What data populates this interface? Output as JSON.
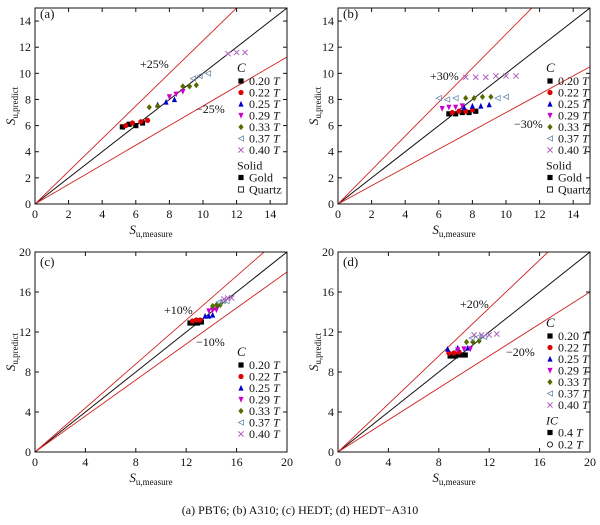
{
  "caption": "(a) PBT6; (b) A310; (c) HEDT; (d) HEDT−A310",
  "chart_data": [
    {
      "type": "scatter",
      "panel": "(a)",
      "xlabel": "S_u,measure",
      "ylabel": "S_u,predict",
      "xlim": [
        0,
        15
      ],
      "ylim": [
        0,
        15
      ],
      "xticks": [
        0,
        2,
        4,
        6,
        8,
        10,
        12,
        14
      ],
      "yticks": [
        0,
        2,
        4,
        6,
        8,
        10,
        12,
        14
      ],
      "bands": [
        {
          "label": "+25%",
          "factor": 1.25
        },
        {
          "label": "−25%",
          "factor": 0.75
        }
      ],
      "legend_title": "C",
      "series": [
        {
          "name": "0.20 T",
          "marker": "square",
          "color": "#000000",
          "x": [
            5.2,
            5.6,
            6.0,
            6.4
          ],
          "y": [
            5.9,
            6.1,
            6.0,
            6.2
          ]
        },
        {
          "name": "0.22 T",
          "marker": "circle",
          "color": "#dd0000",
          "x": [
            5.4,
            5.8,
            6.3,
            6.7
          ],
          "y": [
            6.0,
            6.2,
            6.3,
            6.4
          ]
        },
        {
          "name": "0.25 T",
          "marker": "triangle-up",
          "color": "#0000cc",
          "x": [
            7.3,
            7.8,
            8.3
          ],
          "y": [
            7.6,
            7.8,
            8.0
          ]
        },
        {
          "name": "0.29 T",
          "marker": "triangle-down",
          "color": "#cc00cc",
          "x": [
            8.0,
            8.4,
            8.8
          ],
          "y": [
            8.2,
            8.4,
            8.6
          ]
        },
        {
          "name": "0.33 T",
          "marker": "diamond",
          "color": "#556b00",
          "x": [
            6.8,
            7.3,
            8.8,
            9.2,
            9.6
          ],
          "y": [
            7.4,
            7.5,
            9.0,
            9.0,
            9.1
          ]
        },
        {
          "name": "0.37 T",
          "marker": "left-triangle",
          "color": "#6b8eb0",
          "x": [
            9.4,
            9.8,
            10.3
          ],
          "y": [
            9.6,
            9.8,
            10.0
          ]
        },
        {
          "name": "0.40 T",
          "marker": "x",
          "color": "#b060c0",
          "x": [
            11.5,
            12.0,
            12.5
          ],
          "y": [
            11.5,
            11.6,
            11.6
          ]
        }
      ],
      "solid_title": "Solid",
      "solid": [
        {
          "name": "Gold",
          "marker": "filled",
          "color": "#000000"
        },
        {
          "name": "Quartz",
          "marker": "open-square",
          "color": "#000000"
        }
      ]
    },
    {
      "type": "scatter",
      "panel": "(b)",
      "xlabel": "S_u,measure",
      "ylabel": "S_u,predict",
      "xlim": [
        0,
        15
      ],
      "ylim": [
        0,
        15
      ],
      "xticks": [
        0,
        2,
        4,
        6,
        8,
        10,
        12,
        14
      ],
      "yticks": [
        0,
        2,
        4,
        6,
        8,
        10,
        12,
        14
      ],
      "bands": [
        {
          "label": "+30%",
          "factor": 1.3
        },
        {
          "label": "−30%",
          "factor": 0.7
        }
      ],
      "legend_title": "C",
      "series": [
        {
          "name": "0.20 T",
          "marker": "square",
          "color": "#000000",
          "x": [
            6.6,
            7.0,
            7.4,
            7.8,
            8.2
          ],
          "y": [
            6.9,
            6.9,
            7.0,
            7.0,
            7.1
          ]
        },
        {
          "name": "0.22 T",
          "marker": "circle",
          "color": "#dd0000",
          "x": [
            6.8,
            7.2,
            7.6,
            8.0
          ],
          "y": [
            7.0,
            7.1,
            7.1,
            7.2
          ]
        },
        {
          "name": "0.25 T",
          "marker": "triangle-up",
          "color": "#0000cc",
          "x": [
            7.5,
            8.0,
            8.5,
            9.0
          ],
          "y": [
            7.4,
            7.5,
            7.5,
            7.6
          ]
        },
        {
          "name": "0.29 T",
          "marker": "triangle-down",
          "color": "#cc00cc",
          "x": [
            6.2,
            6.6,
            7.0,
            7.4
          ],
          "y": [
            7.3,
            7.4,
            7.4,
            7.5
          ]
        },
        {
          "name": "0.33 T",
          "marker": "diamond",
          "color": "#556b00",
          "x": [
            7.6,
            8.1,
            8.6,
            9.1
          ],
          "y": [
            8.1,
            8.1,
            8.2,
            8.2
          ]
        },
        {
          "name": "0.37 T",
          "marker": "left-triangle",
          "color": "#6b8eb0",
          "x": [
            6.0,
            6.5,
            7.0,
            9.5,
            10.0
          ],
          "y": [
            8.1,
            8.0,
            8.1,
            8.1,
            8.2
          ]
        },
        {
          "name": "0.40 T",
          "marker": "x",
          "color": "#b060c0",
          "x": [
            7.6,
            8.2,
            8.8,
            9.4,
            10.0,
            10.6
          ],
          "y": [
            9.7,
            9.7,
            9.7,
            9.8,
            9.8,
            9.8
          ]
        }
      ],
      "solid_title": "Solid",
      "solid": [
        {
          "name": "Gold",
          "marker": "filled",
          "color": "#000000"
        },
        {
          "name": "Quartz",
          "marker": "open-square",
          "color": "#000000"
        }
      ]
    },
    {
      "type": "scatter",
      "panel": "(c)",
      "xlabel": "S_u,measure",
      "ylabel": "S_u,predict",
      "xlim": [
        0,
        20
      ],
      "ylim": [
        0,
        20
      ],
      "xticks": [
        0,
        4,
        8,
        12,
        16,
        20
      ],
      "yticks": [
        0,
        4,
        8,
        12,
        16,
        20
      ],
      "bands": [
        {
          "label": "+10%",
          "factor": 1.1
        },
        {
          "label": "−10%",
          "factor": 0.9
        }
      ],
      "legend_title": "C",
      "series": [
        {
          "name": "0.20 T",
          "marker": "square",
          "color": "#000000",
          "x": [
            12.3,
            12.6,
            12.9,
            13.2
          ],
          "y": [
            12.9,
            12.9,
            12.9,
            13.0
          ]
        },
        {
          "name": "0.22 T",
          "marker": "circle",
          "color": "#dd0000",
          "x": [
            12.5,
            12.8,
            13.1
          ],
          "y": [
            13.1,
            13.2,
            13.2
          ]
        },
        {
          "name": "0.25 T",
          "marker": "triangle-up",
          "color": "#0000cc",
          "x": [
            13.5,
            13.8,
            14.1
          ],
          "y": [
            13.6,
            13.6,
            13.7
          ]
        },
        {
          "name": "0.29 T",
          "marker": "triangle-down",
          "color": "#cc00cc",
          "x": [
            13.8,
            14.1,
            14.4
          ],
          "y": [
            14.1,
            14.2,
            14.2
          ]
        },
        {
          "name": "0.33 T",
          "marker": "diamond",
          "color": "#556b00",
          "x": [
            14.1,
            14.4,
            14.7
          ],
          "y": [
            14.6,
            14.7,
            14.7
          ]
        },
        {
          "name": "0.37 T",
          "marker": "left-triangle",
          "color": "#6b8eb0",
          "x": [
            14.6,
            14.9,
            15.2
          ],
          "y": [
            15.0,
            15.1,
            15.1
          ]
        },
        {
          "name": "0.40 T",
          "marker": "x",
          "color": "#b060c0",
          "x": [
            15.0,
            15.3,
            15.6
          ],
          "y": [
            15.3,
            15.4,
            15.4
          ]
        }
      ]
    },
    {
      "type": "scatter",
      "panel": "(d)",
      "xlabel": "S_u,measure",
      "ylabel": "S_u,predict",
      "xlim": [
        0,
        20
      ],
      "ylim": [
        0,
        20
      ],
      "xticks": [
        0,
        4,
        8,
        12,
        16,
        20
      ],
      "yticks": [
        0,
        4,
        8,
        12,
        16,
        20
      ],
      "bands": [
        {
          "label": "+20%",
          "factor": 1.2
        },
        {
          "label": "−20%",
          "factor": 0.8
        }
      ],
      "legend_title": "C",
      "series": [
        {
          "name": "0.20 T",
          "marker": "square",
          "color": "#000000",
          "x": [
            8.9,
            9.3,
            9.7,
            10.1
          ],
          "y": [
            9.6,
            9.6,
            9.7,
            9.7
          ]
        },
        {
          "name": "0.22 T",
          "marker": "circle",
          "color": "#dd0000",
          "x": [
            8.8,
            9.2,
            9.6
          ],
          "y": [
            9.9,
            9.9,
            10.0
          ]
        },
        {
          "name": "0.25 T",
          "marker": "triangle-up",
          "color": "#0000cc",
          "x": [
            8.7,
            9.5,
            10.3
          ],
          "y": [
            10.3,
            10.4,
            10.4
          ]
        },
        {
          "name": "0.29 T",
          "marker": "triangle-down",
          "color": "#cc00cc",
          "x": [
            9.5,
            10.0,
            10.5
          ],
          "y": [
            10.2,
            10.3,
            10.3
          ]
        },
        {
          "name": "0.33 T",
          "marker": "diamond",
          "color": "#556b00",
          "x": [
            10.2,
            10.7,
            11.2
          ],
          "y": [
            11.0,
            11.0,
            11.1
          ]
        },
        {
          "name": "0.37 T",
          "marker": "left-triangle",
          "color": "#6b8eb0",
          "x": [
            10.6,
            11.1,
            11.6
          ],
          "y": [
            11.4,
            11.5,
            11.5
          ]
        },
        {
          "name": "0.40 T",
          "marker": "x",
          "color": "#b060c0",
          "x": [
            10.8,
            11.4,
            12.0,
            12.6
          ],
          "y": [
            11.7,
            11.7,
            11.7,
            11.8
          ]
        }
      ],
      "solid_title": "IC",
      "solid": [
        {
          "name": "0.4 T",
          "marker": "filled",
          "color": "#000000"
        },
        {
          "name": "0.2 T",
          "marker": "open-circle",
          "color": "#000000"
        }
      ]
    }
  ]
}
